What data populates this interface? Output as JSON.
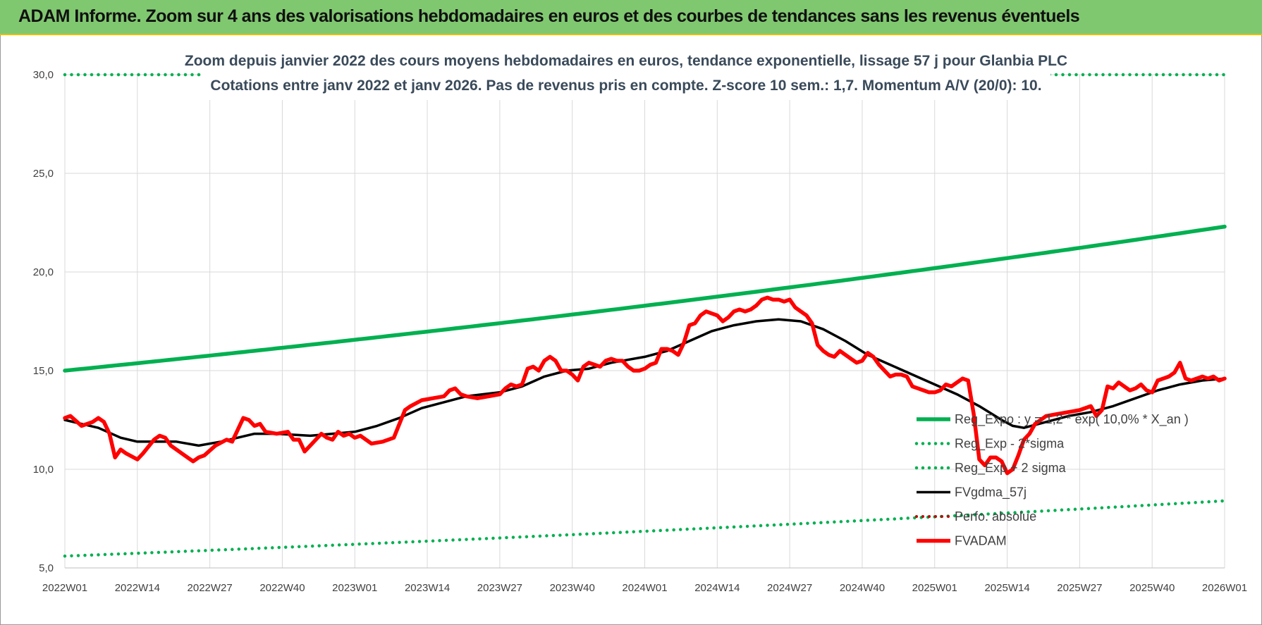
{
  "banner": {
    "title": "ADAM Informe. Zoom sur 4 ans des valorisations hebdomadaires en euros et des courbes de tendances sans les revenus éventuels"
  },
  "chart_data": {
    "type": "line",
    "title_line1": "Zoom depuis janvier 2022 des cours moyens hebdomadaires en euros, tendance exponentielle, lissage 57 j pour Glanbia PLC",
    "title_line2": "Cotations entre janv 2022 et janv 2026. Pas de revenus pris en compte. Z-score 10 sem.: 1,7. Momentum A/V (20/0): 10.",
    "ylim": [
      5,
      30
    ],
    "yticks": [
      "5,0",
      "10,0",
      "15,0",
      "20,0",
      "25,0",
      "30,0"
    ],
    "xlim": [
      0,
      208
    ],
    "xticks": [
      {
        "i": 0,
        "label": "2022W01"
      },
      {
        "i": 13,
        "label": "2022W14"
      },
      {
        "i": 26,
        "label": "2022W27"
      },
      {
        "i": 39,
        "label": "2022W40"
      },
      {
        "i": 52,
        "label": "2023W01"
      },
      {
        "i": 65,
        "label": "2023W14"
      },
      {
        "i": 78,
        "label": "2023W27"
      },
      {
        "i": 91,
        "label": "2023W40"
      },
      {
        "i": 104,
        "label": "2024W01"
      },
      {
        "i": 117,
        "label": "2024W14"
      },
      {
        "i": 130,
        "label": "2024W27"
      },
      {
        "i": 143,
        "label": "2024W40"
      },
      {
        "i": 156,
        "label": "2025W01"
      },
      {
        "i": 169,
        "label": "2025W14"
      },
      {
        "i": 182,
        "label": "2025W27"
      },
      {
        "i": 195,
        "label": "2025W40"
      },
      {
        "i": 208,
        "label": "2026W01"
      }
    ],
    "legend_position": "bottom-right",
    "series": [
      {
        "name": "Reg_Expo : y = 1,2 * exp( 10,0% * X_an )",
        "color": "#00b050",
        "style": "solid",
        "start": 15.0,
        "end": 22.3
      },
      {
        "name": "Reg_Exp - 2*sigma",
        "color": "#00b050",
        "style": "dotted",
        "start": 5.6,
        "end": 8.4
      },
      {
        "name": "Reg_Exp + 2 sigma",
        "color": "#00b050",
        "style": "dotted",
        "start": 30.0,
        "end": 30.0
      },
      {
        "name": "FVgdma_57j",
        "color": "#000000",
        "style": "solid",
        "points": [
          [
            0,
            12.5
          ],
          [
            6,
            12.1
          ],
          [
            10,
            11.6
          ],
          [
            13,
            11.4
          ],
          [
            20,
            11.4
          ],
          [
            24,
            11.2
          ],
          [
            28,
            11.4
          ],
          [
            34,
            11.8
          ],
          [
            38,
            11.8
          ],
          [
            44,
            11.7
          ],
          [
            48,
            11.8
          ],
          [
            52,
            11.9
          ],
          [
            56,
            12.2
          ],
          [
            60,
            12.6
          ],
          [
            64,
            13.1
          ],
          [
            68,
            13.4
          ],
          [
            72,
            13.7
          ],
          [
            78,
            13.9
          ],
          [
            82,
            14.2
          ],
          [
            86,
            14.7
          ],
          [
            90,
            15.0
          ],
          [
            94,
            15.1
          ],
          [
            98,
            15.4
          ],
          [
            104,
            15.7
          ],
          [
            108,
            16.0
          ],
          [
            112,
            16.5
          ],
          [
            116,
            17.0
          ],
          [
            120,
            17.3
          ],
          [
            124,
            17.5
          ],
          [
            128,
            17.6
          ],
          [
            132,
            17.5
          ],
          [
            136,
            17.1
          ],
          [
            140,
            16.5
          ],
          [
            144,
            15.8
          ],
          [
            148,
            15.3
          ],
          [
            152,
            14.8
          ],
          [
            156,
            14.3
          ],
          [
            160,
            13.8
          ],
          [
            164,
            13.2
          ],
          [
            168,
            12.5
          ],
          [
            170,
            12.2
          ],
          [
            172,
            12.1
          ],
          [
            176,
            12.4
          ],
          [
            180,
            12.7
          ],
          [
            184,
            12.9
          ],
          [
            188,
            13.2
          ],
          [
            192,
            13.6
          ],
          [
            196,
            14.0
          ],
          [
            200,
            14.3
          ],
          [
            204,
            14.5
          ],
          [
            208,
            14.6
          ]
        ]
      },
      {
        "name": "Perfo. absolue",
        "color": "#c00000",
        "style": "dotted"
      },
      {
        "name": "FVADAM",
        "color": "#ff0000",
        "style": "solid",
        "points": [
          [
            0,
            12.6
          ],
          [
            1,
            12.7
          ],
          [
            3,
            12.2
          ],
          [
            5,
            12.4
          ],
          [
            6,
            12.6
          ],
          [
            7,
            12.4
          ],
          [
            8,
            11.8
          ],
          [
            9,
            10.6
          ],
          [
            10,
            11.0
          ],
          [
            11,
            10.8
          ],
          [
            13,
            10.5
          ],
          [
            14,
            10.8
          ],
          [
            16,
            11.5
          ],
          [
            17,
            11.7
          ],
          [
            18,
            11.6
          ],
          [
            19,
            11.2
          ],
          [
            20,
            11.0
          ],
          [
            22,
            10.6
          ],
          [
            23,
            10.4
          ],
          [
            24,
            10.6
          ],
          [
            25,
            10.7
          ],
          [
            27,
            11.2
          ],
          [
            29,
            11.5
          ],
          [
            30,
            11.4
          ],
          [
            32,
            12.6
          ],
          [
            33,
            12.5
          ],
          [
            34,
            12.2
          ],
          [
            35,
            12.3
          ],
          [
            36,
            11.9
          ],
          [
            38,
            11.8
          ],
          [
            40,
            11.9
          ],
          [
            41,
            11.5
          ],
          [
            42,
            11.5
          ],
          [
            43,
            10.9
          ],
          [
            45,
            11.5
          ],
          [
            46,
            11.8
          ],
          [
            47,
            11.6
          ],
          [
            48,
            11.5
          ],
          [
            49,
            11.9
          ],
          [
            50,
            11.7
          ],
          [
            51,
            11.8
          ],
          [
            52,
            11.6
          ],
          [
            53,
            11.7
          ],
          [
            55,
            11.3
          ],
          [
            57,
            11.4
          ],
          [
            59,
            11.6
          ],
          [
            61,
            13.0
          ],
          [
            62,
            13.2
          ],
          [
            64,
            13.5
          ],
          [
            66,
            13.6
          ],
          [
            68,
            13.7
          ],
          [
            69,
            14.0
          ],
          [
            70,
            14.1
          ],
          [
            71,
            13.8
          ],
          [
            72,
            13.7
          ],
          [
            74,
            13.6
          ],
          [
            76,
            13.7
          ],
          [
            78,
            13.8
          ],
          [
            79,
            14.1
          ],
          [
            80,
            14.3
          ],
          [
            81,
            14.2
          ],
          [
            82,
            14.3
          ],
          [
            83,
            15.1
          ],
          [
            84,
            15.2
          ],
          [
            85,
            15.0
          ],
          [
            86,
            15.5
          ],
          [
            87,
            15.7
          ],
          [
            88,
            15.5
          ],
          [
            89,
            15.0
          ],
          [
            90,
            15.0
          ],
          [
            91,
            14.8
          ],
          [
            92,
            14.5
          ],
          [
            93,
            15.2
          ],
          [
            94,
            15.4
          ],
          [
            95,
            15.3
          ],
          [
            96,
            15.2
          ],
          [
            97,
            15.5
          ],
          [
            98,
            15.6
          ],
          [
            99,
            15.5
          ],
          [
            100,
            15.5
          ],
          [
            101,
            15.2
          ],
          [
            102,
            15.0
          ],
          [
            103,
            15.0
          ],
          [
            104,
            15.1
          ],
          [
            105,
            15.3
          ],
          [
            106,
            15.4
          ],
          [
            107,
            16.1
          ],
          [
            108,
            16.1
          ],
          [
            109,
            16.0
          ],
          [
            110,
            15.8
          ],
          [
            111,
            16.4
          ],
          [
            112,
            17.3
          ],
          [
            113,
            17.4
          ],
          [
            114,
            17.8
          ],
          [
            115,
            18.0
          ],
          [
            116,
            17.9
          ],
          [
            117,
            17.8
          ],
          [
            118,
            17.5
          ],
          [
            119,
            17.7
          ],
          [
            120,
            18.0
          ],
          [
            121,
            18.1
          ],
          [
            122,
            18.0
          ],
          [
            123,
            18.1
          ],
          [
            124,
            18.3
          ],
          [
            125,
            18.6
          ],
          [
            126,
            18.7
          ],
          [
            127,
            18.6
          ],
          [
            128,
            18.6
          ],
          [
            129,
            18.5
          ],
          [
            130,
            18.6
          ],
          [
            131,
            18.2
          ],
          [
            132,
            18.0
          ],
          [
            133,
            17.8
          ],
          [
            134,
            17.4
          ],
          [
            135,
            16.3
          ],
          [
            136,
            16.0
          ],
          [
            137,
            15.8
          ],
          [
            138,
            15.7
          ],
          [
            139,
            16.0
          ],
          [
            140,
            15.8
          ],
          [
            141,
            15.6
          ],
          [
            142,
            15.4
          ],
          [
            143,
            15.5
          ],
          [
            144,
            15.9
          ],
          [
            145,
            15.7
          ],
          [
            146,
            15.3
          ],
          [
            147,
            15.0
          ],
          [
            148,
            14.7
          ],
          [
            149,
            14.8
          ],
          [
            150,
            14.8
          ],
          [
            151,
            14.7
          ],
          [
            152,
            14.2
          ],
          [
            153,
            14.1
          ],
          [
            154,
            14.0
          ],
          [
            155,
            13.9
          ],
          [
            156,
            13.9
          ],
          [
            157,
            14.0
          ],
          [
            158,
            14.3
          ],
          [
            159,
            14.2
          ],
          [
            160,
            14.4
          ],
          [
            161,
            14.6
          ],
          [
            162,
            14.5
          ],
          [
            163,
            12.8
          ],
          [
            164,
            10.5
          ],
          [
            165,
            10.2
          ],
          [
            166,
            10.6
          ],
          [
            167,
            10.6
          ],
          [
            168,
            10.4
          ],
          [
            169,
            9.8
          ],
          [
            170,
            10.0
          ],
          [
            171,
            10.7
          ],
          [
            172,
            11.5
          ],
          [
            173,
            11.8
          ],
          [
            174,
            12.3
          ],
          [
            175,
            12.5
          ],
          [
            176,
            12.7
          ],
          [
            178,
            12.8
          ],
          [
            180,
            12.9
          ],
          [
            182,
            13.0
          ],
          [
            184,
            13.2
          ],
          [
            185,
            12.7
          ],
          [
            186,
            13.0
          ],
          [
            187,
            14.2
          ],
          [
            188,
            14.1
          ],
          [
            189,
            14.4
          ],
          [
            190,
            14.2
          ],
          [
            191,
            14.0
          ],
          [
            192,
            14.1
          ],
          [
            193,
            14.3
          ],
          [
            194,
            14.0
          ],
          [
            195,
            13.9
          ],
          [
            196,
            14.5
          ],
          [
            197,
            14.6
          ],
          [
            198,
            14.7
          ],
          [
            199,
            14.9
          ],
          [
            200,
            15.4
          ],
          [
            201,
            14.6
          ],
          [
            202,
            14.5
          ],
          [
            203,
            14.6
          ],
          [
            204,
            14.7
          ],
          [
            205,
            14.6
          ],
          [
            206,
            14.7
          ],
          [
            207,
            14.5
          ],
          [
            208,
            14.6
          ]
        ]
      }
    ]
  }
}
